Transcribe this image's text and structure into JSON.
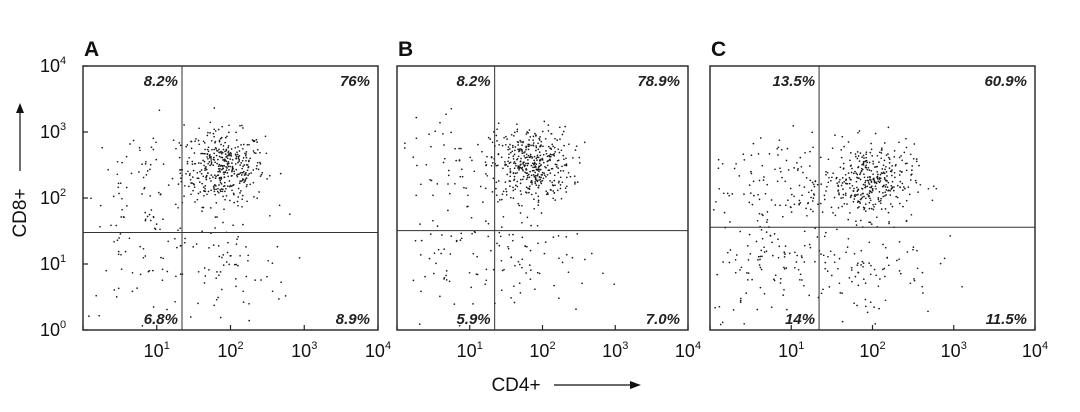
{
  "chart_data": {
    "type": "scatter",
    "xlabel": "CD4+",
    "ylabel": "CD8+",
    "x_scale": "log",
    "y_scale": "log",
    "xlim": [
      1,
      10000
    ],
    "ylim": [
      1,
      10000
    ],
    "x_ticks": [
      {
        "base": "10",
        "exp": "1"
      },
      {
        "base": "10",
        "exp": "2"
      },
      {
        "base": "10",
        "exp": "3"
      },
      {
        "base": "10",
        "exp": "4"
      }
    ],
    "y_ticks": [
      {
        "base": "10",
        "exp": "0"
      },
      {
        "base": "10",
        "exp": "1"
      },
      {
        "base": "10",
        "exp": "2"
      },
      {
        "base": "10",
        "exp": "3"
      },
      {
        "base": "10",
        "exp": "4"
      }
    ],
    "panels": [
      {
        "label": "A",
        "quadrant_gate": {
          "x": 22,
          "y": 30
        },
        "quadrants": {
          "upper_left": "8.2%",
          "upper_right": "76%",
          "lower_left": "6.8%",
          "lower_right": "8.9%"
        },
        "clusters": [
          {
            "cx": 80,
            "cy": 280,
            "count": 420
          },
          {
            "cx": 8,
            "cy": 200,
            "count": 70
          },
          {
            "cx": 6,
            "cy": 12,
            "count": 60
          },
          {
            "cx": 90,
            "cy": 8,
            "count": 70
          }
        ]
      },
      {
        "label": "B",
        "quadrant_gate": {
          "x": 22,
          "y": 32
        },
        "quadrants": {
          "upper_left": "8.2%",
          "upper_right": "78.9%",
          "lower_left": "5.9%",
          "lower_right": "7.0%"
        },
        "clusters": [
          {
            "cx": 70,
            "cy": 320,
            "count": 440
          },
          {
            "cx": 7,
            "cy": 220,
            "count": 70
          },
          {
            "cx": 6,
            "cy": 10,
            "count": 55
          },
          {
            "cx": 70,
            "cy": 10,
            "count": 60
          }
        ]
      },
      {
        "label": "C",
        "quadrant_gate": {
          "x": 22,
          "y": 36
        },
        "quadrants": {
          "upper_left": "13.5%",
          "upper_right": "60.9%",
          "lower_left": "14%",
          "lower_right": "11.5%"
        },
        "clusters": [
          {
            "cx": 90,
            "cy": 180,
            "count": 380
          },
          {
            "cx": 7,
            "cy": 160,
            "count": 120
          },
          {
            "cx": 7,
            "cy": 10,
            "count": 110
          },
          {
            "cx": 90,
            "cy": 10,
            "count": 90
          }
        ]
      }
    ]
  }
}
